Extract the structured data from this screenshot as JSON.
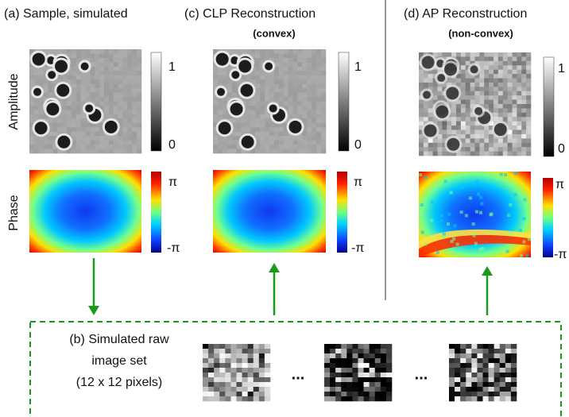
{
  "panels": {
    "a": {
      "title": "(a) Sample, simulated"
    },
    "c": {
      "title": "(c) CLP Reconstruction",
      "subtitle": "(convex)"
    },
    "d": {
      "title": "(d) AP Reconstruction",
      "subtitle": "(non-convex)"
    },
    "b": {
      "lines": [
        "(b) Simulated raw",
        "image set",
        "(12 x 12 pixels)"
      ]
    }
  },
  "row_labels": [
    "Amplitude",
    "Phase"
  ],
  "amplitude_colorbar": {
    "max": "1",
    "min": "0"
  },
  "phase_colorbar": {
    "max": "π",
    "min": "-π"
  },
  "ellipsis": "..."
}
